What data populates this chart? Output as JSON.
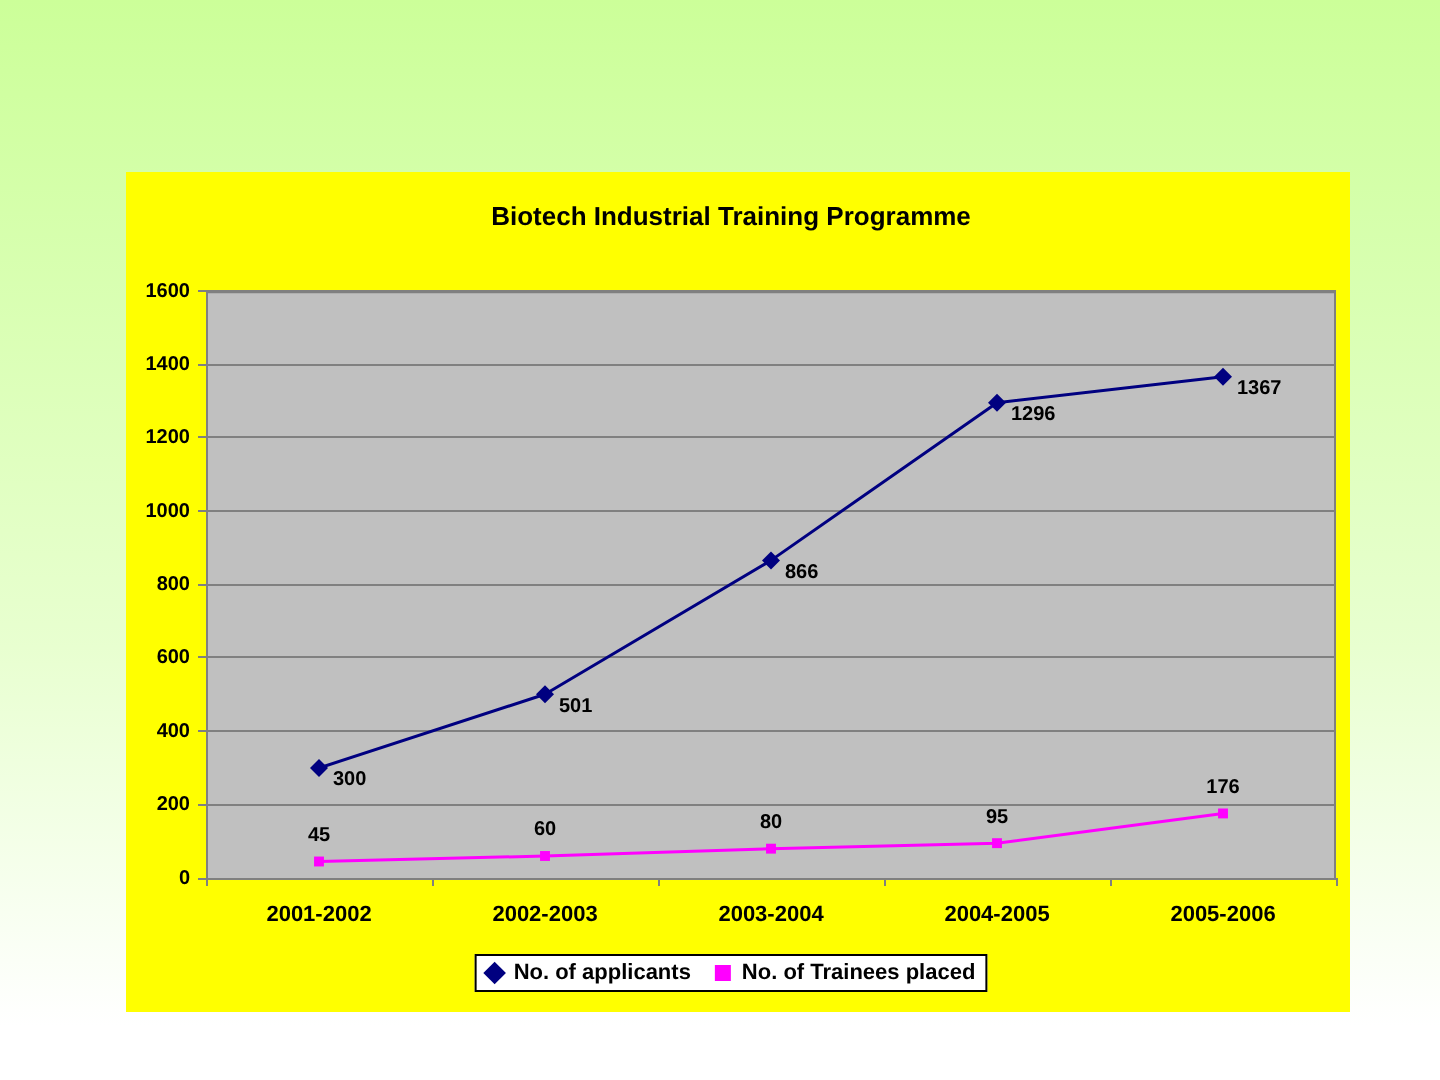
{
  "chart_data": {
    "type": "line",
    "title": "Biotech Industrial Training Programme",
    "categories": [
      "2001-2002",
      "2002-2003",
      "2003-2004",
      "2004-2005",
      "2005-2006"
    ],
    "series": [
      {
        "name": "No. of applicants",
        "color": "#000080",
        "marker": "diamond",
        "values": [
          300,
          501,
          866,
          1296,
          1367
        ]
      },
      {
        "name": "No. of Trainees placed",
        "color": "#ff00ff",
        "marker": "square",
        "values": [
          45,
          60,
          80,
          95,
          176
        ]
      }
    ],
    "ylim": [
      0,
      1600
    ],
    "yticks": [
      0,
      200,
      400,
      600,
      800,
      1000,
      1200,
      1400,
      1600
    ],
    "grid": "y",
    "legend": "bottom",
    "data_labels": true
  }
}
